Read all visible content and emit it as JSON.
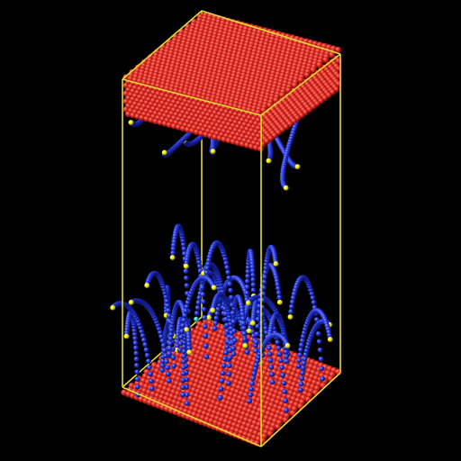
{
  "scene": {
    "subject": "molecular-dynamics-simulation-box",
    "background_color": "#000000",
    "box_edge_color": "#e6d832",
    "substrate_color": "#d81e1e",
    "substrate_highlight_color": "#ff6a5a",
    "chain_color": "#1c2ccc",
    "chain_highlight_color": "#6f7dff",
    "end_bead_yellow": "#f4f000",
    "end_bead_cyan": "#2fc4b8",
    "surfaces": [
      "top-substrate-slab",
      "bottom-substrate-slab"
    ],
    "chain_groups": [
      "top-grafted-chains",
      "bottom-grafted-chains"
    ]
  }
}
